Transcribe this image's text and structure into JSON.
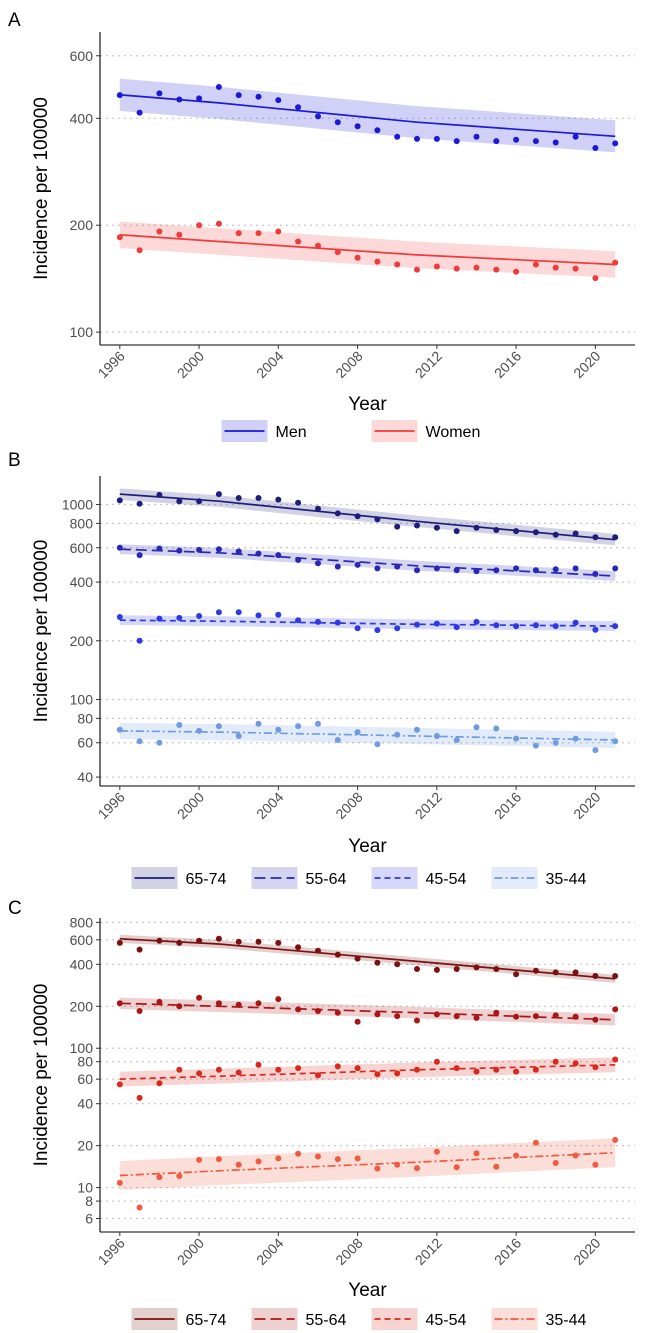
{
  "figure": {
    "colors": {
      "men": "#1a1ad6",
      "women": "#f03b3b",
      "b_65_74": "#1e1e7a",
      "b_55_64": "#2828b4",
      "b_45_54": "#2e3ae0",
      "b_35_44": "#6f9be0",
      "c_65_74": "#7a1010",
      "c_55_64": "#a81616",
      "c_45_54": "#d9281c",
      "c_35_44": "#ef5a40"
    }
  },
  "chart_data": [
    {
      "panel": "A",
      "type": "line",
      "scale_y": "log",
      "xlabel": "Year",
      "ylabel": "Incidence per 100000",
      "xlim": [
        1995,
        2022
      ],
      "ylim": [
        92,
        700
      ],
      "x_ticks": [
        1996,
        2000,
        2004,
        2008,
        2012,
        2016,
        2020
      ],
      "y_ticks": [
        100,
        200,
        400,
        600
      ],
      "grid": "horizontal dotted",
      "legend": "bottom",
      "x": [
        1996,
        1997,
        1998,
        1999,
        2000,
        2001,
        2002,
        2003,
        2004,
        2005,
        2006,
        2007,
        2008,
        2009,
        2010,
        2011,
        2012,
        2013,
        2014,
        2015,
        2016,
        2017,
        2018,
        2019,
        2020,
        2021
      ],
      "series": [
        {
          "name": "Men",
          "linestyle": "solid",
          "color_key": "men",
          "points": [
            465,
            415,
            470,
            452,
            455,
            490,
            465,
            460,
            450,
            430,
            405,
            390,
            380,
            370,
            355,
            350,
            350,
            345,
            355,
            345,
            348,
            345,
            342,
            355,
            330,
            340
          ],
          "trend": [
            [
              1996,
              466
            ],
            [
              2001,
              442
            ],
            [
              2011,
              390
            ],
            [
              2021,
              356
            ]
          ],
          "band_halfwidth_ratio": 1.11
        },
        {
          "name": "Women",
          "linestyle": "solid",
          "color_key": "women",
          "points": [
            185,
            170,
            192,
            188,
            200,
            202,
            190,
            190,
            192,
            180,
            175,
            168,
            162,
            158,
            155,
            150,
            153,
            151,
            152,
            150,
            148,
            155,
            152,
            151,
            142,
            157
          ],
          "trend": [
            [
              1996,
              188
            ],
            [
              2001,
              180
            ],
            [
              2011,
              165
            ],
            [
              2021,
              155
            ]
          ],
          "band_halfwidth_ratio": 1.09
        }
      ]
    },
    {
      "panel": "B",
      "type": "line",
      "scale_y": "log",
      "xlabel": "Year",
      "ylabel": "Incidence per 100000",
      "xlim": [
        1995,
        2022
      ],
      "ylim": [
        36,
        1400
      ],
      "x_ticks": [
        1996,
        2000,
        2004,
        2008,
        2012,
        2016,
        2020
      ],
      "y_ticks": [
        40,
        60,
        80,
        100,
        200,
        400,
        600,
        800,
        1000
      ],
      "grid": "horizontal dotted",
      "legend": "bottom",
      "x": [
        1996,
        1997,
        1998,
        1999,
        2000,
        2001,
        2002,
        2003,
        2004,
        2005,
        2006,
        2007,
        2008,
        2009,
        2010,
        2011,
        2012,
        2013,
        2014,
        2015,
        2016,
        2017,
        2018,
        2019,
        2020,
        2021
      ],
      "series": [
        {
          "name": "65-74",
          "linestyle": "solid",
          "color_key": "b_65_74",
          "points": [
            1050,
            1010,
            1120,
            1040,
            1040,
            1130,
            1080,
            1080,
            1060,
            1020,
            950,
            900,
            870,
            840,
            770,
            780,
            760,
            730,
            760,
            740,
            730,
            720,
            700,
            710,
            680,
            680
          ],
          "trend": [
            [
              1996,
              1130
            ],
            [
              2001,
              1040
            ],
            [
              2011,
              820
            ],
            [
              2021,
              660
            ]
          ],
          "band_halfwidth_ratio": 1.07
        },
        {
          "name": "55-64",
          "linestyle": "longdash",
          "color_key": "b_55_64",
          "points": [
            600,
            550,
            595,
            580,
            585,
            590,
            575,
            560,
            550,
            520,
            500,
            480,
            490,
            470,
            480,
            460,
            470,
            460,
            455,
            460,
            470,
            460,
            465,
            470,
            440,
            470
          ],
          "trend": [
            [
              1996,
              590
            ],
            [
              2001,
              565
            ],
            [
              2011,
              485
            ],
            [
              2021,
              430
            ]
          ],
          "band_halfwidth_ratio": 1.06
        },
        {
          "name": "45-54",
          "linestyle": "dashed",
          "color_key": "b_45_54",
          "points": [
            265,
            200,
            260,
            262,
            268,
            280,
            280,
            270,
            272,
            255,
            250,
            248,
            232,
            227,
            232,
            242,
            245,
            235,
            250,
            240,
            238,
            240,
            238,
            248,
            228,
            238
          ],
          "trend": [
            [
              1996,
              255
            ],
            [
              2001,
              252
            ],
            [
              2011,
              243
            ],
            [
              2021,
              238
            ]
          ],
          "band_halfwidth_ratio": 1.06
        },
        {
          "name": "35-44",
          "linestyle": "dotdash",
          "color_key": "b_35_44",
          "points": [
            70,
            61,
            60,
            74,
            69,
            73,
            65,
            75,
            70,
            73,
            75,
            62,
            68,
            59,
            66,
            70,
            65,
            62,
            72,
            71,
            63,
            58,
            60,
            63,
            55,
            61
          ],
          "trend": [
            [
              1996,
              69
            ],
            [
              2001,
              68
            ],
            [
              2011,
              65
            ],
            [
              2021,
              62
            ]
          ],
          "band_halfwidth_ratio": 1.1
        }
      ]
    },
    {
      "panel": "C",
      "type": "line",
      "scale_y": "log",
      "xlabel": "Year",
      "ylabel": "Incidence per 100000",
      "xlim": [
        1995,
        2022
      ],
      "ylim": [
        4.8,
        860
      ],
      "x_ticks": [
        1996,
        2000,
        2004,
        2008,
        2012,
        2016,
        2020
      ],
      "y_ticks": [
        6,
        8,
        10,
        20,
        40,
        60,
        80,
        100,
        200,
        400,
        600,
        800
      ],
      "grid": "horizontal dotted",
      "legend": "bottom",
      "x": [
        1996,
        1997,
        1998,
        1999,
        2000,
        2001,
        2002,
        2003,
        2004,
        2005,
        2006,
        2007,
        2008,
        2009,
        2010,
        2011,
        2012,
        2013,
        2014,
        2015,
        2016,
        2017,
        2018,
        2019,
        2020,
        2021
      ],
      "series": [
        {
          "name": "65-74",
          "linestyle": "solid",
          "color_key": "c_65_74",
          "points": [
            570,
            510,
            590,
            570,
            590,
            610,
            580,
            580,
            570,
            530,
            500,
            470,
            440,
            410,
            400,
            370,
            365,
            370,
            380,
            370,
            340,
            360,
            350,
            350,
            330,
            330
          ],
          "trend": [
            [
              1996,
              610
            ],
            [
              2001,
              560
            ],
            [
              2011,
              420
            ],
            [
              2021,
              315
            ]
          ],
          "band_halfwidth_ratio": 1.07
        },
        {
          "name": "55-64",
          "linestyle": "longdash",
          "color_key": "c_55_64",
          "points": [
            210,
            185,
            215,
            200,
            230,
            210,
            205,
            210,
            225,
            190,
            185,
            180,
            155,
            175,
            170,
            158,
            175,
            170,
            165,
            180,
            168,
            170,
            172,
            168,
            160,
            190
          ],
          "trend": [
            [
              1996,
              210
            ],
            [
              2001,
              200
            ],
            [
              2011,
              180
            ],
            [
              2021,
              160
            ]
          ],
          "band_halfwidth_ratio": 1.1
        },
        {
          "name": "45-54",
          "linestyle": "dashed",
          "color_key": "c_45_54",
          "points": [
            55,
            44,
            56,
            70,
            66,
            70,
            67,
            76,
            70,
            72,
            64,
            74,
            72,
            65,
            66,
            70,
            80,
            72,
            68,
            70,
            68,
            70,
            80,
            78,
            73,
            83
          ],
          "trend": [
            [
              1996,
              60
            ],
            [
              2001,
              63
            ],
            [
              2011,
              70
            ],
            [
              2021,
              76
            ]
          ],
          "band_halfwidth_ratio": 1.13
        },
        {
          "name": "35-44",
          "linestyle": "dotdash",
          "color_key": "c_35_44",
          "points": [
            10.8,
            7.2,
            11.9,
            12.1,
            15.8,
            16.0,
            14.6,
            15.4,
            16.2,
            17.5,
            16.7,
            16.0,
            16.2,
            13.7,
            14.6,
            13.8,
            18.1,
            14.0,
            17.6,
            14.1,
            17.0,
            21.0,
            15.0,
            17.0,
            14.6,
            22.0
          ],
          "trend": [
            [
              1996,
              12.2
            ],
            [
              2001,
              13.2
            ],
            [
              2011,
              15.2
            ],
            [
              2021,
              17.8
            ]
          ],
          "band_halfwidth_ratio": 1.27
        }
      ]
    }
  ]
}
